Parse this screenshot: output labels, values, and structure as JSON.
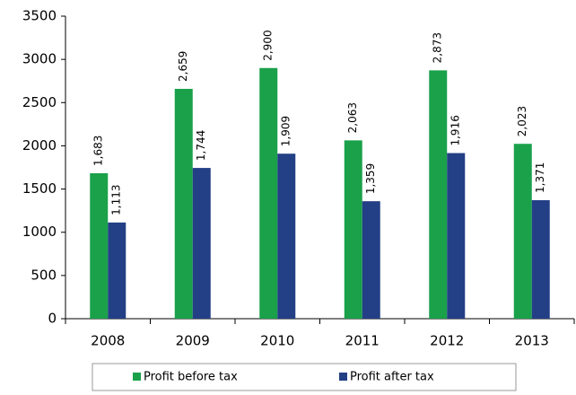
{
  "chart_data": {
    "type": "bar",
    "categories": [
      "2008",
      "2009",
      "2010",
      "2011",
      "2012",
      "2013"
    ],
    "series": [
      {
        "name": "Profit before tax",
        "color": "#1aa14a",
        "values": [
          1683,
          2659,
          2900,
          2063,
          2873,
          2023
        ],
        "value_labels": [
          "1,683",
          "2,659",
          "2,900",
          "2,063",
          "2,873",
          "2,023"
        ]
      },
      {
        "name": "Profit after tax",
        "color": "#233f85",
        "values": [
          1113,
          1744,
          1909,
          1359,
          1916,
          1371
        ],
        "value_labels": [
          "1,113",
          "1,744",
          "1,909",
          "1,359",
          "1,916",
          "1,371"
        ]
      }
    ],
    "ylim": [
      0,
      3500
    ],
    "yticks": [
      0,
      500,
      1000,
      1500,
      2000,
      2500,
      3000,
      3500
    ],
    "grid": false,
    "legend": "bottom"
  }
}
